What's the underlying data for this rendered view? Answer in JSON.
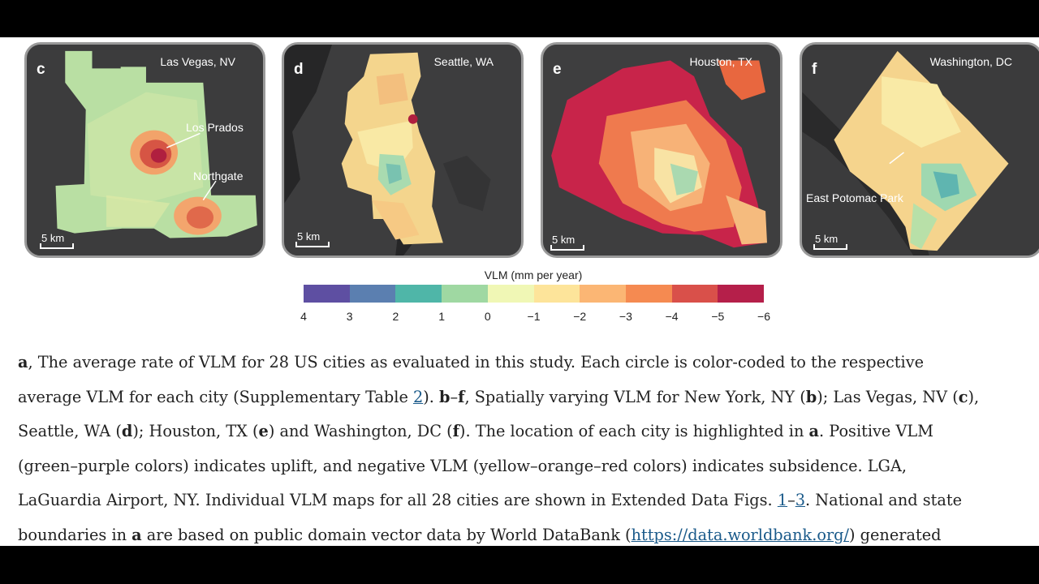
{
  "panels": [
    {
      "label": "c",
      "city": "Las Vegas, NV",
      "annotations": [
        "Los Prados",
        "Northgate"
      ],
      "scale": "5 km"
    },
    {
      "label": "d",
      "city": "Seattle, WA",
      "annotations": [],
      "scale": "5 km"
    },
    {
      "label": "e",
      "city": "Houston, TX",
      "annotations": [],
      "scale": "5 km"
    },
    {
      "label": "f",
      "city": "Washington, DC",
      "annotations": [
        "East Potomac Park"
      ],
      "scale": "5 km"
    }
  ],
  "colorbar": {
    "title": "VLM (mm per year)",
    "ticks": [
      "4",
      "3",
      "2",
      "1",
      "0",
      "−1",
      "−2",
      "−3",
      "−4",
      "−5",
      "−6"
    ],
    "colors": [
      "#5e4fa2",
      "#5b7fb0",
      "#4fb6a8",
      "#9fd8a2",
      "#f0f7b5",
      "#fde49a",
      "#fbb674",
      "#f58a51",
      "#d9504a",
      "#b51f4a"
    ]
  },
  "caption": {
    "l1": {
      "b1": "a",
      "t1": ", The average rate of VLM for 28 US cities as evaluated in this study. Each circle is color-coded to the respective"
    },
    "l2": {
      "t1": "average VLM for each city (Supplementary Table ",
      "link": "2",
      "t2": "). ",
      "b1": "b",
      "t3": "–",
      "b2": "f",
      "t4": ", Spatially varying VLM for New York, NY (",
      "b3": "b",
      "t5": "); Las Vegas, NV (",
      "b4": "c",
      "t6": "),"
    },
    "l3": {
      "t1": "Seattle, WA (",
      "b1": "d",
      "t2": "); Houston, TX (",
      "b2": "e",
      "t3": ") and Washington, DC (",
      "b3": "f",
      "t4": "). The location of each city is highlighted in ",
      "b4": "a",
      "t5": ". Positive VLM"
    },
    "l4": {
      "t1": "(green–purple colors) indicates uplift, and negative VLM (yellow–orange–red colors) indicates subsidence. LGA,"
    },
    "l5": {
      "t1": "LaGuardia Airport, NY. Individual VLM maps for all 28 cities are shown in Extended Data Figs. ",
      "link1": "1",
      "t2": "–",
      "link2": "3",
      "t3": ". National and state"
    },
    "l6": {
      "t1": "boundaries in ",
      "b1": "a",
      "t2": " are based on public domain vector data by World DataBank (",
      "link": "https://data.worldbank.org/",
      "t3": ") generated"
    }
  }
}
